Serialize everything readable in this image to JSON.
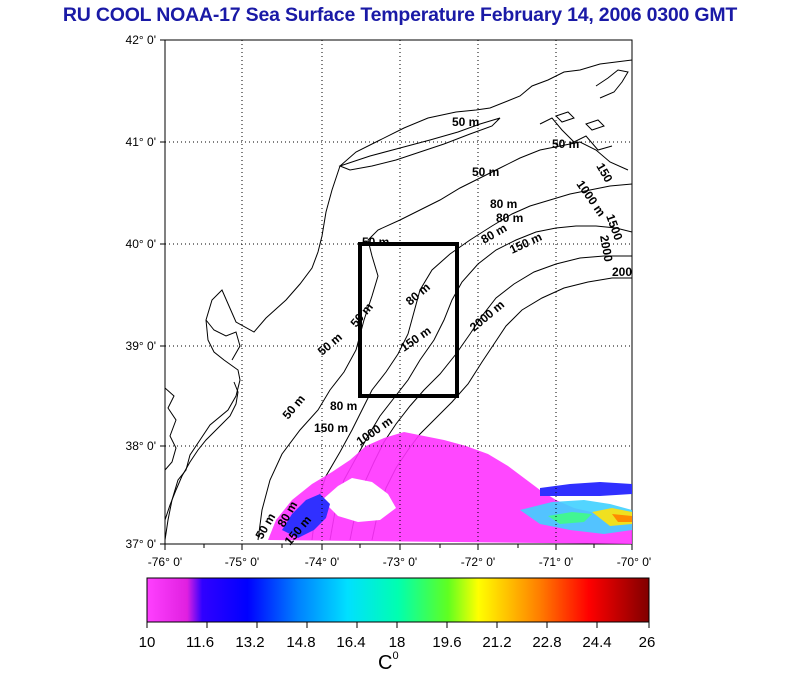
{
  "title": "RU COOL  NOAA-17 Sea Surface Temperature February 14, 2006 0300 GMT",
  "lat_labels": [
    "42° 0'",
    "41° 0'",
    "40° 0'",
    "39° 0'",
    "38° 0'",
    "37° 0'"
  ],
  "lon_labels": [
    "-76° 0'",
    "-75° 0'",
    "-74° 0'",
    "-73° 0'",
    "-72° 0'",
    "-71° 0'",
    "-70° 0'"
  ],
  "contour_labels": [
    "50 m",
    "50 m",
    "50 m",
    "50 m",
    "50 m",
    "50 m",
    "50 m",
    "50 m",
    "80 m",
    "80 m",
    "80 m",
    "80 m",
    "80 m",
    "150 m",
    "150 m",
    "150 m",
    "150 m",
    "1000 m",
    "1000 m",
    "2000 m",
    "2000",
    "200",
    "150",
    "1500",
    "80 m"
  ],
  "study_box": {
    "lon_min": -73.5,
    "lon_max": -72.5,
    "lat_min": 38.5,
    "lat_max": 40.0
  },
  "colorbar": {
    "ticks": [
      "10",
      "11.6",
      "13.2",
      "14.8",
      "16.4",
      "18",
      "19.6",
      "21.2",
      "22.8",
      "24.4",
      "26"
    ],
    "min": 10,
    "max": 26,
    "stops": [
      "#ff40ff",
      "#e020e0",
      "#0000ff",
      "#0060ff",
      "#00c0ff",
      "#00ffc0",
      "#00ff40",
      "#ffff00",
      "#ff8000",
      "#ff0000",
      "#800000"
    ]
  },
  "unit_label": "C",
  "unit_sup": "0"
}
